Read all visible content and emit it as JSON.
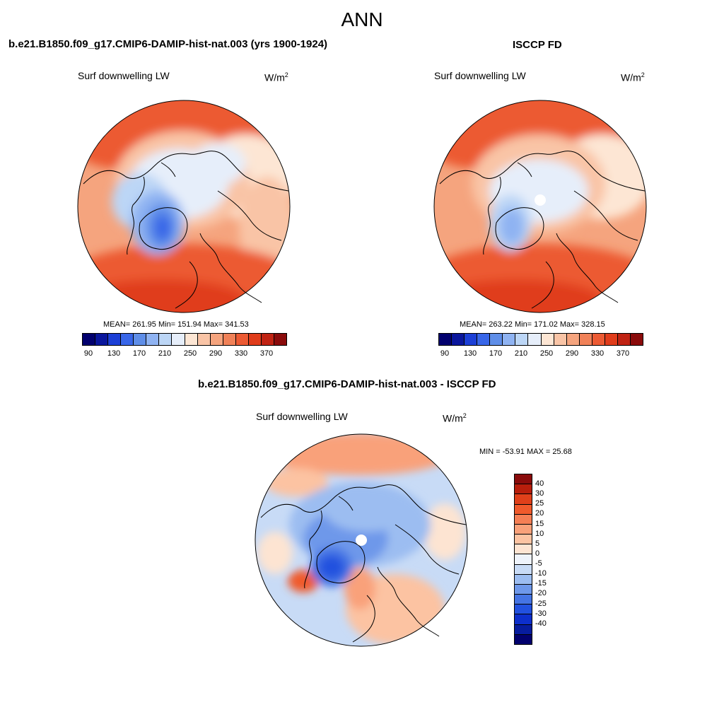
{
  "title": "ANN",
  "var_label": "Surf downwelling LW",
  "units_base": "W/m",
  "units_exp": "2",
  "panels": {
    "model": {
      "title": "b.e21.B1850.f09_g17.CMIP6-DAMIP-hist-nat.003 (yrs 1900-1924)",
      "stats": "MEAN= 261.95  Min= 151.94  Max= 341.53",
      "mean": 261.95,
      "min": 151.94,
      "max": 341.53
    },
    "obs": {
      "title": "ISCCP FD",
      "stats": "MEAN= 263.22  Min= 171.02  Max= 328.15",
      "mean": 263.22,
      "min": 171.02,
      "max": 328.15
    },
    "diff": {
      "title": "b.e21.B1850.f09_g17.CMIP6-DAMIP-hist-nat.003 - ISCCP FD",
      "stats": "MIN = -53.91 MAX =  25.68",
      "min": -53.91,
      "max": 25.68
    }
  },
  "abs_colorbar": {
    "colors": [
      "#02006e",
      "#0a169c",
      "#1c3fd6",
      "#3866e8",
      "#5f8ee8",
      "#8fb3f2",
      "#bcd6f6",
      "#e6eefa",
      "#fde6d4",
      "#f9c4a6",
      "#f5a47e",
      "#f08158",
      "#ec5a33",
      "#e03c1b",
      "#c02313",
      "#8a0b0b"
    ],
    "tick_labels": [
      "90",
      "130",
      "170",
      "210",
      "250",
      "290",
      "330",
      "370"
    ]
  },
  "diff_colorbar": {
    "colors": [
      "#8a0b0b",
      "#b81e0c",
      "#e0401a",
      "#f05a2c",
      "#f57f55",
      "#f9a17a",
      "#fcc3a2",
      "#fde4d2",
      "#eef3fb",
      "#c8dbf6",
      "#9cbdf1",
      "#6e98ea",
      "#4574e4",
      "#2251df",
      "#0d2fcc",
      "#071c9e",
      "#02006e"
    ],
    "tick_labels": [
      "40",
      "30",
      "25",
      "20",
      "15",
      "10",
      "5",
      "0",
      "-5",
      "-10",
      "-15",
      "-20",
      "-25",
      "-30",
      "-40"
    ]
  }
}
